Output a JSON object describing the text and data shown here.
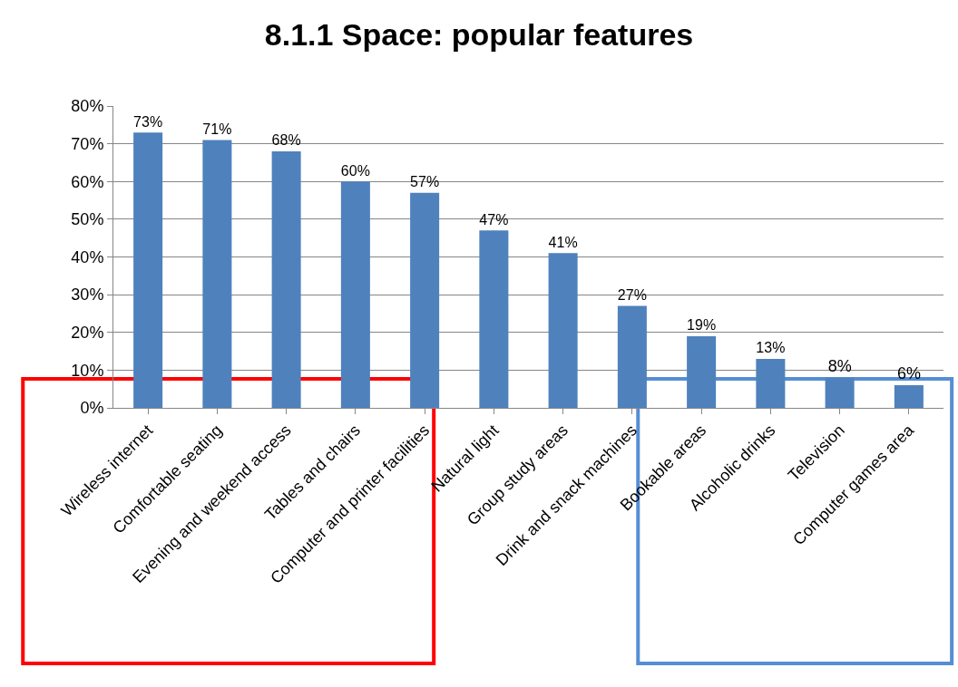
{
  "chart_data": {
    "type": "bar",
    "title": "8.1.1 Space: popular features",
    "categories": [
      "Wireless internet",
      "Comfortable seating",
      "Evening and weekend access",
      "Tables and chairs",
      "Computer and printer facilities",
      "Natural light",
      "Group study areas",
      "Drink and snack machines",
      "Bookable areas",
      "Alcoholic drinks",
      "Television",
      "Computer games area"
    ],
    "values": [
      73,
      71,
      68,
      60,
      57,
      47,
      41,
      27,
      19,
      13,
      8,
      6
    ],
    "value_labels": [
      "73%",
      "71%",
      "68%",
      "60%",
      "57%",
      "47%",
      "41%",
      "27%",
      "19%",
      "13%",
      "8%",
      "6%"
    ],
    "color": "#4f81bd",
    "ylim": [
      0,
      80
    ],
    "yticks": [
      {
        "value": 0,
        "label": "0%"
      },
      {
        "value": 10,
        "label": "10%"
      },
      {
        "value": 20,
        "label": "20%"
      },
      {
        "value": 30,
        "label": "30%"
      },
      {
        "value": 40,
        "label": "40%"
      },
      {
        "value": 50,
        "label": "50%"
      },
      {
        "value": 60,
        "label": "60%"
      },
      {
        "value": 70,
        "label": "70%"
      },
      {
        "value": 80,
        "label": "80%"
      }
    ],
    "grid": "y"
  }
}
